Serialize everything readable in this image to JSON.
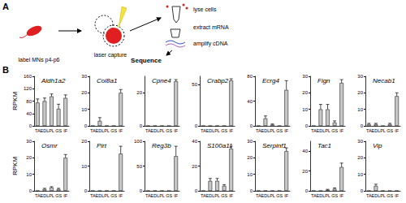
{
  "panel_labels": [
    "A",
    "B"
  ],
  "diagram": {
    "steps": [
      "label MNs p4-p6",
      "laser capture",
      "lyse cells",
      "extract mRNA",
      "amplify cDNA",
      "Sequence"
    ]
  },
  "chart_data": [
    {
      "type": "bar",
      "title": "Aldh1a2",
      "ylabel": "RPKM",
      "categories": [
        "TA",
        "EDL",
        "PL",
        "GS",
        "IF"
      ],
      "values": [
        75,
        80,
        95,
        55,
        90
      ],
      "errors": [
        12,
        10,
        8,
        15,
        10
      ],
      "color": "#c8c8c8",
      "ylim": [
        0,
        160
      ],
      "yticks": [
        0,
        40,
        80,
        120,
        160
      ]
    },
    {
      "type": "bar",
      "title": "Col8a1",
      "categories": [
        "TA",
        "EDL",
        "PL",
        "GS",
        "IF"
      ],
      "values": [
        0,
        3,
        0,
        0,
        20
      ],
      "errors": [
        0,
        2,
        0,
        0,
        2
      ],
      "color": "#c8c8c8",
      "ylim": [
        0,
        30
      ],
      "yticks": [
        0,
        10,
        20,
        30
      ]
    },
    {
      "type": "bar",
      "title": "Cpne4",
      "categories": [
        "TA",
        "EDL",
        "PL",
        "GS",
        "IF"
      ],
      "values": [
        0,
        0,
        0,
        0,
        27
      ],
      "errors": [
        0,
        0,
        0,
        0,
        1
      ],
      "color": "#c8c8c8",
      "ylim": [
        0,
        30
      ],
      "yticks": [
        0,
        20
      ]
    },
    {
      "type": "bar",
      "title": "Crabp2",
      "categories": [
        "TA",
        "EDL",
        "PL",
        "GS",
        "IF"
      ],
      "values": [
        0,
        0,
        0,
        0,
        55
      ],
      "errors": [
        0,
        0,
        0,
        0,
        2
      ],
      "color": "#c8c8c8",
      "ylim": [
        0,
        60
      ],
      "yticks": [
        0,
        50
      ]
    },
    {
      "type": "bar",
      "title": "Ecrg4",
      "categories": [
        "TA",
        "EDL",
        "PL",
        "GS",
        "IF"
      ],
      "values": [
        0,
        12,
        2,
        0,
        58
      ],
      "errors": [
        0,
        4,
        1,
        0,
        15
      ],
      "color": "#c8c8c8",
      "ylim": [
        0,
        80
      ],
      "yticks": [
        0,
        40,
        80
      ]
    },
    {
      "type": "bar",
      "title": "Fign",
      "categories": [
        "TA",
        "EDL",
        "PL",
        "GS",
        "IF"
      ],
      "values": [
        0,
        10,
        10,
        2,
        26
      ],
      "errors": [
        0,
        3,
        3,
        1,
        2
      ],
      "color": "#c8c8c8",
      "ylim": [
        0,
        30
      ],
      "yticks": [
        0,
        10,
        20,
        30
      ]
    },
    {
      "type": "bar",
      "title": "Necab1",
      "categories": [
        "TA",
        "EDL",
        "PL",
        "GS",
        "IF"
      ],
      "values": [
        1,
        1,
        0,
        1,
        18
      ],
      "errors": [
        0.5,
        0.5,
        0,
        0.5,
        2
      ],
      "color": "#c8c8c8",
      "ylim": [
        0,
        30
      ],
      "yticks": [
        0,
        10,
        20,
        30
      ]
    },
    {
      "type": "bar",
      "title": "Osmr",
      "ylabel": "RPKM",
      "categories": [
        "TA",
        "EDL",
        "PL",
        "GS",
        "IF"
      ],
      "values": [
        0,
        1,
        2,
        1,
        20
      ],
      "errors": [
        0,
        0.5,
        0.5,
        0.5,
        2
      ],
      "color": "#c8c8c8",
      "ylim": [
        0,
        30
      ],
      "yticks": [
        0,
        10,
        20,
        30
      ]
    },
    {
      "type": "bar",
      "title": "Pirt",
      "categories": [
        "TA",
        "EDL",
        "PL",
        "GS",
        "IF"
      ],
      "values": [
        0,
        0,
        0,
        0,
        15
      ],
      "errors": [
        0,
        0,
        0,
        0,
        3
      ],
      "color": "#c8c8c8",
      "ylim": [
        0,
        20
      ],
      "yticks": [
        0,
        10,
        20
      ]
    },
    {
      "type": "bar",
      "title": "Reg3b",
      "categories": [
        "TA",
        "EDL",
        "PL",
        "GS",
        "IF"
      ],
      "values": [
        0,
        0,
        0,
        0,
        70
      ],
      "errors": [
        0,
        0,
        0,
        0,
        20
      ],
      "color": "#c8c8c8",
      "ylim": [
        0,
        100
      ],
      "yticks": [
        0,
        50,
        100
      ]
    },
    {
      "type": "bar",
      "title": "S100a11",
      "categories": [
        "TA",
        "EDL",
        "PL",
        "GS",
        "IF"
      ],
      "values": [
        0,
        8,
        8,
        4,
        34
      ],
      "errors": [
        0,
        2,
        2,
        1,
        2
      ],
      "color": "#c8c8c8",
      "ylim": [
        0,
        40
      ],
      "yticks": [
        0,
        20,
        40
      ]
    },
    {
      "type": "bar",
      "title": "Serpinf1",
      "categories": [
        "TA",
        "EDL",
        "PL",
        "GS",
        "IF"
      ],
      "values": [
        0,
        0,
        0,
        0,
        24
      ],
      "errors": [
        0,
        0,
        0,
        0,
        2
      ],
      "color": "#c8c8c8",
      "ylim": [
        0,
        30
      ],
      "yticks": [
        0,
        10,
        20,
        30
      ]
    },
    {
      "type": "bar",
      "title": "Tac1",
      "categories": [
        "TA",
        "EDL",
        "PL",
        "GS",
        "IF"
      ],
      "values": [
        0,
        0,
        1,
        2,
        24
      ],
      "errors": [
        0,
        0,
        0.5,
        1,
        4
      ],
      "color": "#c8c8c8",
      "ylim": [
        0,
        50
      ],
      "yticks": [
        0,
        20,
        40
      ]
    },
    {
      "type": "bar",
      "title": "Vip",
      "categories": [
        "TA",
        "EDL",
        "PL",
        "GS",
        "IF"
      ],
      "values": [
        0,
        3,
        0,
        0,
        0
      ],
      "errors": [
        0,
        1,
        0,
        0,
        0
      ],
      "color": "#c8c8c8",
      "ylim": [
        0,
        30
      ],
      "yticks": [
        0,
        10,
        20,
        30
      ]
    }
  ]
}
